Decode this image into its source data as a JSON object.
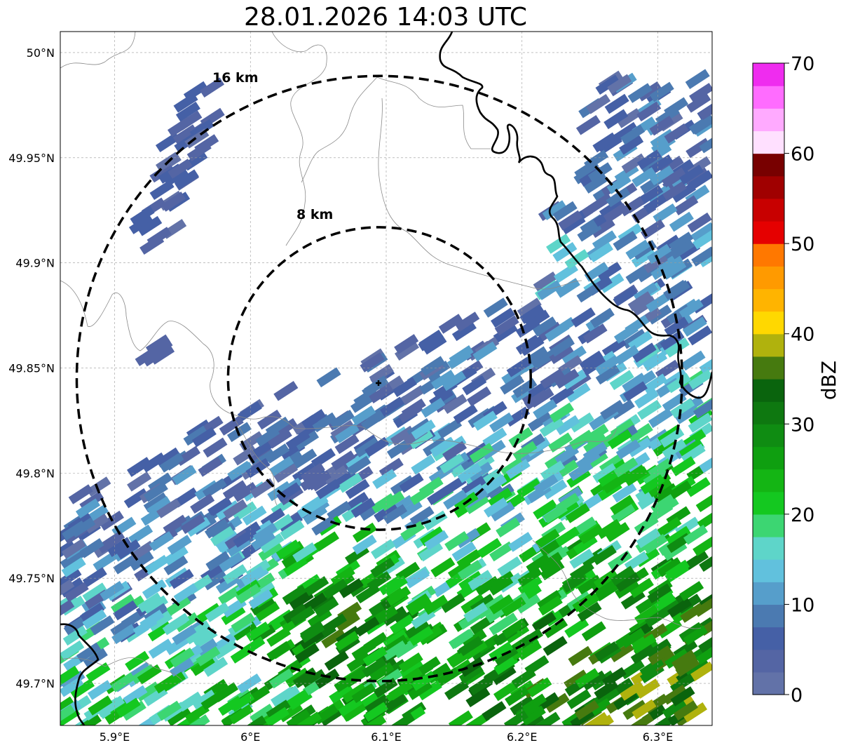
{
  "title": "28.01.2026 14:03 UTC",
  "map": {
    "lon_range": [
      5.86,
      6.34
    ],
    "lat_range": [
      49.68,
      50.01
    ],
    "lon_ticks": [
      {
        "value": 5.9,
        "label": "5.9°E"
      },
      {
        "value": 6.0,
        "label": "6°E"
      },
      {
        "value": 6.1,
        "label": "6.1°E"
      },
      {
        "value": 6.2,
        "label": "6.2°E"
      },
      {
        "value": 6.3,
        "label": "6.3°E"
      }
    ],
    "lat_ticks": [
      {
        "value": 50.0,
        "label": "50°N"
      },
      {
        "value": 49.95,
        "label": "49.95°N"
      },
      {
        "value": 49.9,
        "label": "49.9°N"
      },
      {
        "value": 49.85,
        "label": "49.85°N"
      },
      {
        "value": 49.8,
        "label": "49.8°N"
      },
      {
        "value": 49.75,
        "label": "49.75°N"
      },
      {
        "value": 49.7,
        "label": "49.7°N"
      }
    ],
    "radar_site": {
      "lon": 6.095,
      "lat": 49.845
    },
    "range_rings": [
      {
        "radius_km": 8,
        "label": "8 km"
      },
      {
        "radius_km": 16,
        "label": "16 km"
      }
    ]
  },
  "colorbar": {
    "label": "dBZ",
    "min": 0,
    "max": 70,
    "tick_values": [
      0,
      10,
      20,
      30,
      40,
      50,
      60,
      70
    ],
    "colors": [
      "#6272a8",
      "#5465a4",
      "#4560a6",
      "#4b7ab1",
      "#569ecb",
      "#61c1dd",
      "#5ed5c9",
      "#3cd672",
      "#14c820",
      "#14b514",
      "#0f9f10",
      "#0f8c12",
      "#0e7810",
      "#0a640d",
      "#467a0f",
      "#b0b20d",
      "#ffd800",
      "#ffb400",
      "#ff9a00",
      "#ff7800",
      "#e50000",
      "#c80000",
      "#a00000",
      "#780000",
      "#ffe0ff",
      "#ffaaff",
      "#ff6cff",
      "#ef2cef"
    ]
  }
}
